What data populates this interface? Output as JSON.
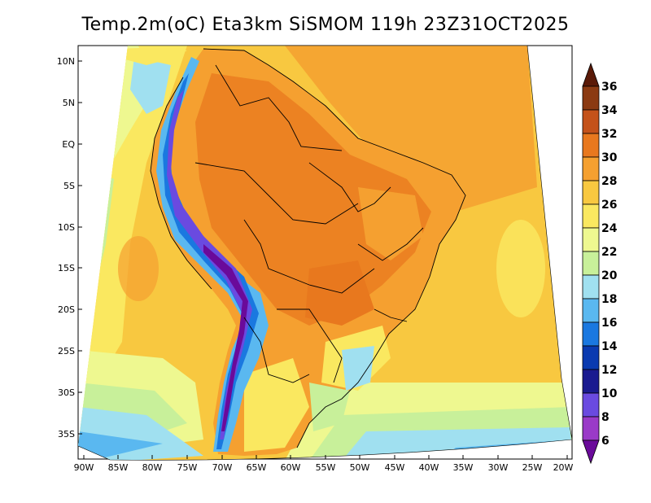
{
  "title": "Temp.2m(oC) Eta3km SiSMOM 119h 23Z31OCT2025",
  "lat_ticks": [
    "10N",
    "5N",
    "EQ",
    "5S",
    "10S",
    "15S",
    "20S",
    "25S",
    "30S",
    "35S"
  ],
  "lon_ticks": [
    "90W",
    "85W",
    "80W",
    "75W",
    "70W",
    "65W",
    "60W",
    "55W",
    "50W",
    "45W",
    "40W",
    "35W",
    "30W",
    "25W",
    "20W"
  ],
  "colorbar": {
    "labels": [
      "36",
      "34",
      "32",
      "30",
      "28",
      "26",
      "24",
      "22",
      "20",
      "18",
      "16",
      "14",
      "12",
      "10",
      "8",
      "6"
    ],
    "colors": [
      "#5a1a08",
      "#8b3a12",
      "#c4521a",
      "#e8781e",
      "#f5a030",
      "#f8c840",
      "#fae860",
      "#eef890",
      "#c8f09a",
      "#a0e0f0",
      "#5ab8f0",
      "#1a78e0",
      "#0a3ab0",
      "#1a1a90",
      "#6a4ae0",
      "#9a3ac8",
      "#6a0a9a"
    ]
  }
}
